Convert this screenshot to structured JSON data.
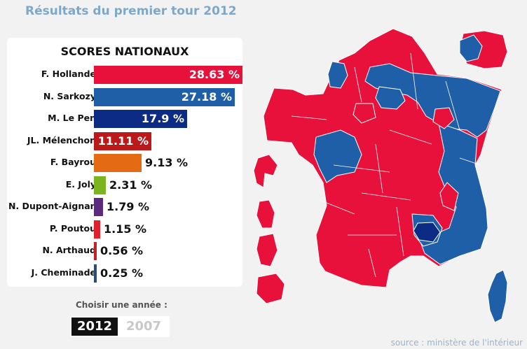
{
  "title": "Résultats du premier tour 2012",
  "panel_title": "SCORES NATIONAUX",
  "candidates": [
    {
      "name": "F. Hollande",
      "score": 28.63,
      "label": "28.63 %",
      "color": "#e8113b"
    },
    {
      "name": "N. Sarkozy",
      "score": 27.18,
      "label": "27.18 %",
      "color": "#1f5fa8"
    },
    {
      "name": "M. Le Pen",
      "score": 17.9,
      "label": "17.9 %",
      "color": "#0c2b85"
    },
    {
      "name": "JL. Mélenchon",
      "score": 11.11,
      "label": "11.11 %",
      "color": "#bb1a1a"
    },
    {
      "name": "F. Bayrou",
      "score": 9.13,
      "label": "9.13 %",
      "color": "#e46a14"
    },
    {
      "name": "E. Joly",
      "score": 2.31,
      "label": "2.31 %",
      "color": "#7cb41f"
    },
    {
      "name": "N. Dupont-Aignan",
      "score": 1.79,
      "label": "1.79 %",
      "color": "#5b2a7e"
    },
    {
      "name": "P. Poutou",
      "score": 1.15,
      "label": "1.15 %",
      "color": "#e0202a"
    },
    {
      "name": "N. Arthaud",
      "score": 0.56,
      "label": "0.56 %",
      "color": "#c41e2a"
    },
    {
      "name": "J. Cheminade",
      "score": 0.25,
      "label": "0.25 %",
      "color": "#2a4e6c"
    }
  ],
  "year_selector": {
    "label": "Choisir une année :",
    "years": [
      "2012",
      "2007"
    ],
    "selected": "2012"
  },
  "source": "source : ministère de l'intérieur",
  "map_colors": {
    "red": "#e8113b",
    "blue": "#1f5fa8",
    "dark_blue": "#0c2b85",
    "border": "#ffffff"
  },
  "chart_data": {
    "type": "bar",
    "title": "SCORES NATIONAUX",
    "categories": [
      "F. Hollande",
      "N. Sarkozy",
      "M. Le Pen",
      "JL. Mélenchon",
      "F. Bayrou",
      "E. Joly",
      "N. Dupont-Aignan",
      "P. Poutou",
      "N. Arthaud",
      "J. Cheminade"
    ],
    "values": [
      28.63,
      27.18,
      17.9,
      11.11,
      9.13,
      2.31,
      1.79,
      1.15,
      0.56,
      0.25
    ],
    "unit": "%",
    "xlabel": "",
    "ylabel": ""
  }
}
